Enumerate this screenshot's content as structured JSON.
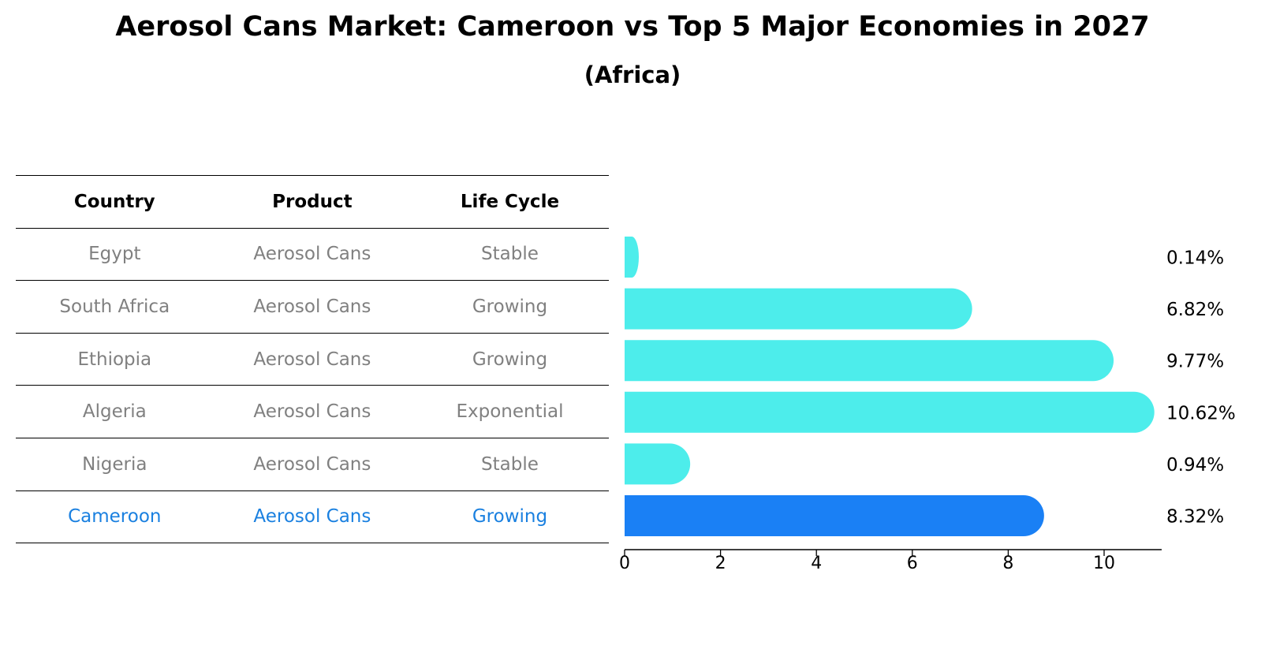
{
  "title": "Aerosol Cans Market: Cameroon vs Top 5 Major Economies in 2027",
  "subtitle": "(Africa)",
  "table": {
    "headers": [
      "Country",
      "Product",
      "Life Cycle"
    ],
    "rows": [
      {
        "country": "Egypt",
        "product": "Aerosol Cans",
        "life_cycle": "Stable"
      },
      {
        "country": "South Africa",
        "product": "Aerosol Cans",
        "life_cycle": "Growing"
      },
      {
        "country": "Ethiopia",
        "product": "Aerosol Cans",
        "life_cycle": "Growing"
      },
      {
        "country": "Algeria",
        "product": "Aerosol Cans",
        "life_cycle": "Exponential"
      },
      {
        "country": "Nigeria",
        "product": "Aerosol Cans",
        "life_cycle": "Stable"
      },
      {
        "country": "Cameroon",
        "product": "Aerosol Cans",
        "life_cycle": "Growing"
      }
    ]
  },
  "colors": {
    "bar": "#4dedeb",
    "highlight": "#1a80f5",
    "muted_text": "#808080",
    "highlight_text": "#1a80e0"
  },
  "chart_data": {
    "type": "bar",
    "orientation": "horizontal",
    "categories": [
      "Egypt",
      "South Africa",
      "Ethiopia",
      "Algeria",
      "Nigeria",
      "Cameroon"
    ],
    "values": [
      0.14,
      6.82,
      9.77,
      10.62,
      0.94,
      8.32
    ],
    "value_labels": [
      "0.14%",
      "6.82%",
      "9.77%",
      "10.62%",
      "0.94%",
      "8.32%"
    ],
    "highlight_category": "Cameroon",
    "xticks": [
      0,
      2,
      4,
      6,
      8,
      10
    ],
    "xlim": [
      0,
      11.2
    ],
    "title": "Aerosol Cans Market: Cameroon vs Top 5 Major Economies in 2027",
    "subtitle": "(Africa)",
    "xlabel": "",
    "ylabel": "",
    "grid": false
  }
}
